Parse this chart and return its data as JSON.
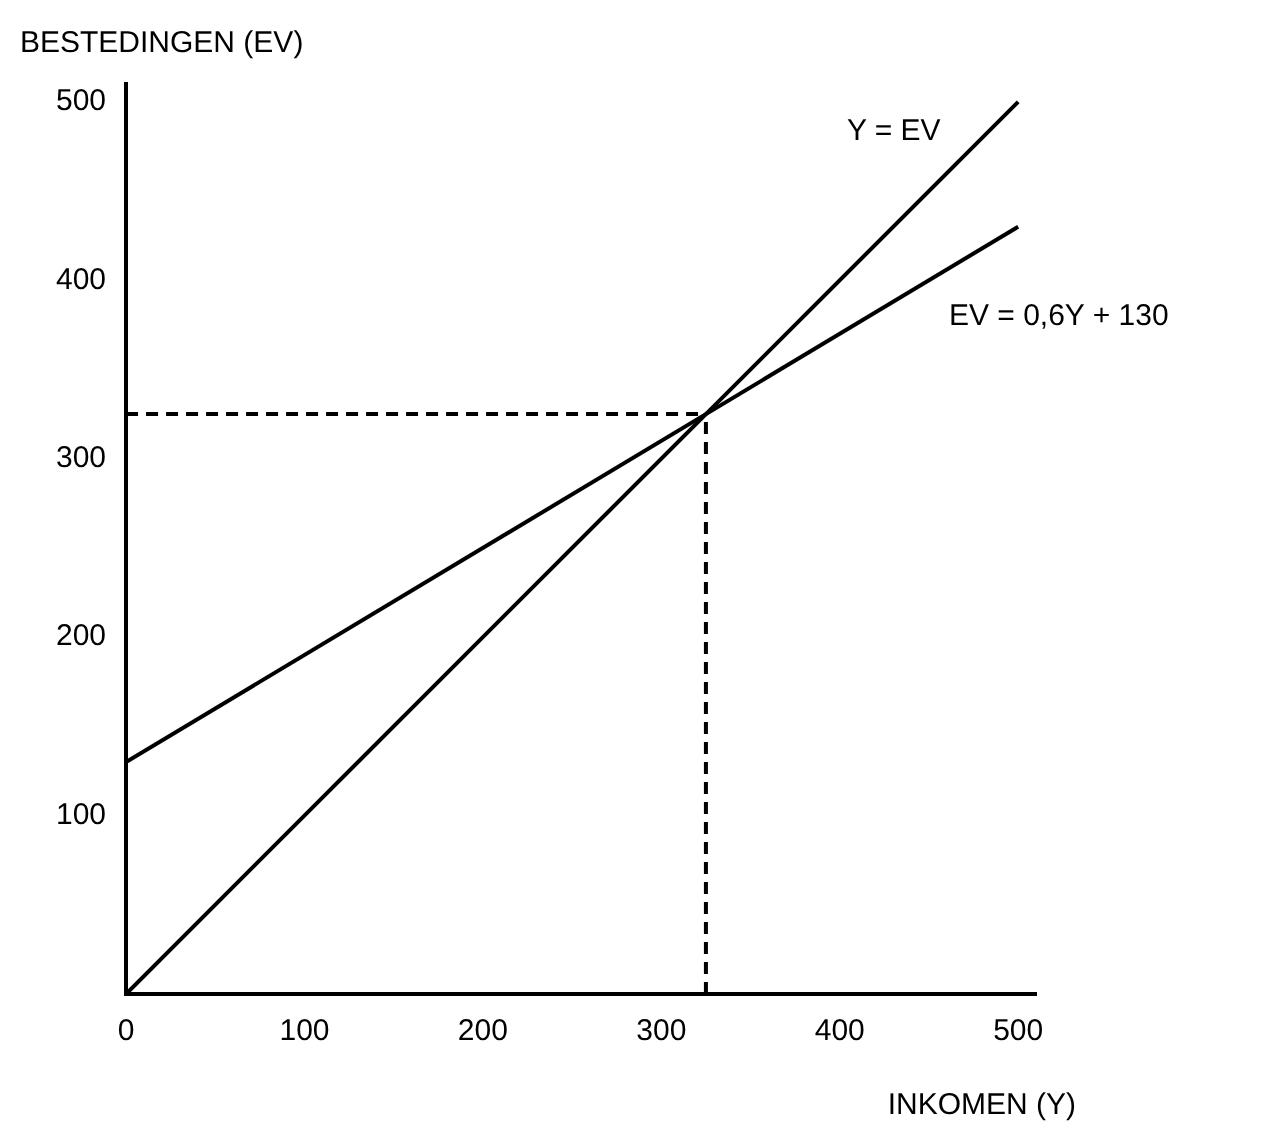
{
  "chart_data": {
    "type": "line",
    "xlabel": "INKOMEN (Y)",
    "ylabel": "BESTEDINGEN (EV)",
    "xlim": [
      0,
      510
    ],
    "ylim": [
      0,
      510
    ],
    "xticks": [
      0,
      100,
      200,
      300,
      400,
      500
    ],
    "yticks": [
      100,
      200,
      300,
      400,
      500
    ],
    "grid": false,
    "legend": false,
    "marker": "none",
    "series": [
      {
        "color": "#000000",
        "x": [
          0,
          500
        ],
        "values": [
          0,
          500
        ],
        "line_style": "solid"
      },
      {
        "color": "#000000",
        "x": [
          0,
          500
        ],
        "values": [
          130,
          430
        ],
        "line_style": "solid"
      },
      {
        "color": "#000000",
        "x": [
          0,
          325
        ],
        "values": [
          325,
          325
        ],
        "line_style": "dashed"
      },
      {
        "color": "#000000",
        "x": [
          325,
          325
        ],
        "values": [
          0,
          325
        ],
        "line_style": "dashed"
      }
    ],
    "annotations": [
      {
        "text": "Y = EV",
        "x": 470,
        "y": 470
      },
      {
        "text": "EV = 0,6Y + 130",
        "x": 450,
        "y": 400
      }
    ]
  }
}
